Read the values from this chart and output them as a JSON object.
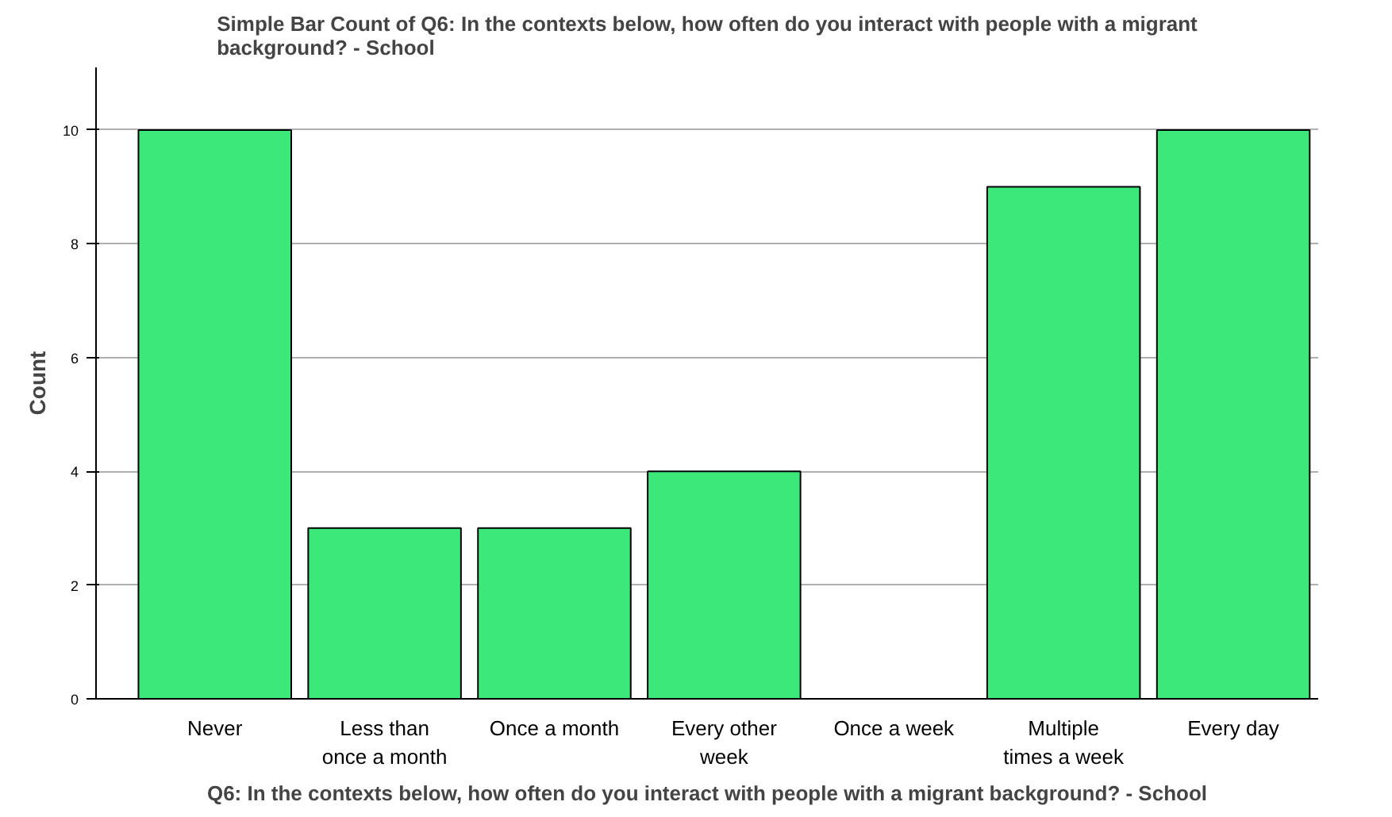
{
  "chart_data": {
    "type": "bar",
    "title": "Simple Bar Count of Q6: In the contexts below, how often do you interact with people with a migrant background? - School",
    "xlabel": "Q6: In the contexts below, how often do you interact with people with a migrant background? - School",
    "ylabel": "Count",
    "categories": [
      "Never",
      "Less than once a month",
      "Once a month",
      "Every other week",
      "Once a week",
      "Multiple times a week",
      "Every day"
    ],
    "values": [
      10,
      3,
      3,
      4,
      0,
      9,
      10
    ],
    "color": "#3de87a",
    "ylim": [
      0,
      11.1
    ],
    "yticks": [
      0,
      2,
      4,
      6,
      8,
      10
    ],
    "grid": "y"
  }
}
